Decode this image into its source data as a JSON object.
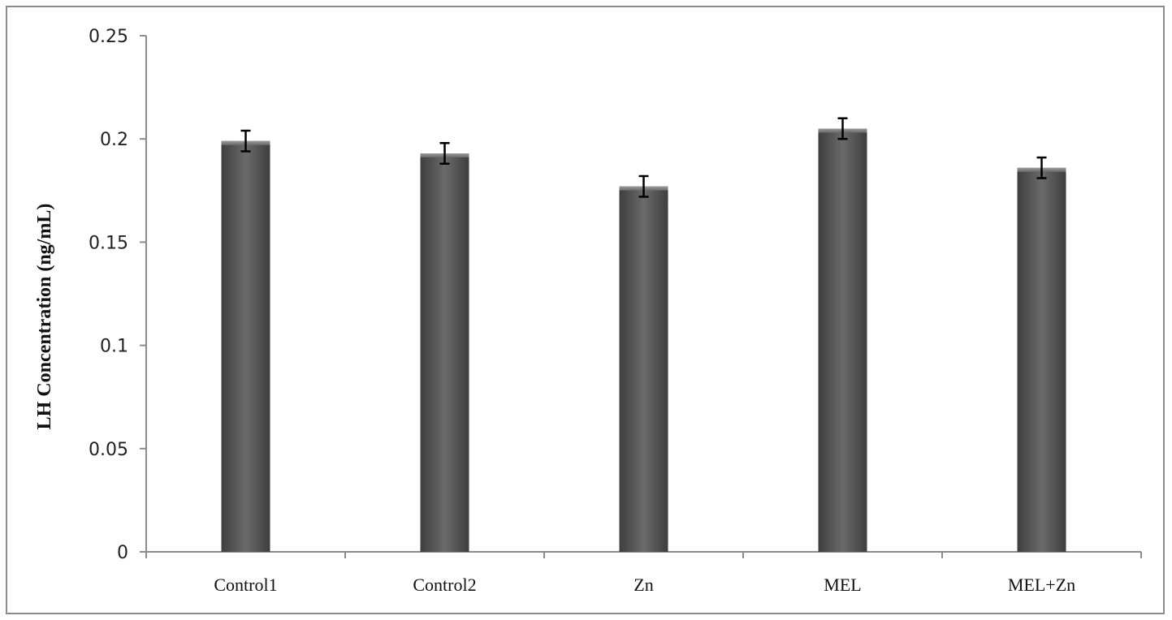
{
  "chart_data": {
    "type": "bar",
    "title": "",
    "xlabel": "",
    "ylabel": "LH Concentration (ng/mL)",
    "categories": [
      "Control1",
      "Control2",
      "Zn",
      "MEL",
      "MEL+Zn"
    ],
    "values": [
      0.199,
      0.193,
      0.177,
      0.205,
      0.186
    ],
    "errors": [
      0.005,
      0.005,
      0.005,
      0.005,
      0.005
    ],
    "ylim": [
      0,
      0.25
    ],
    "yticks": [
      0,
      0.05,
      0.1,
      0.15,
      0.2,
      0.25
    ],
    "ytick_labels": [
      "0",
      "0.05",
      "0.1",
      "0.15",
      "0.2",
      "0.25"
    ],
    "grid": false,
    "legend": "none",
    "bar_color": "#5a5a5a"
  }
}
